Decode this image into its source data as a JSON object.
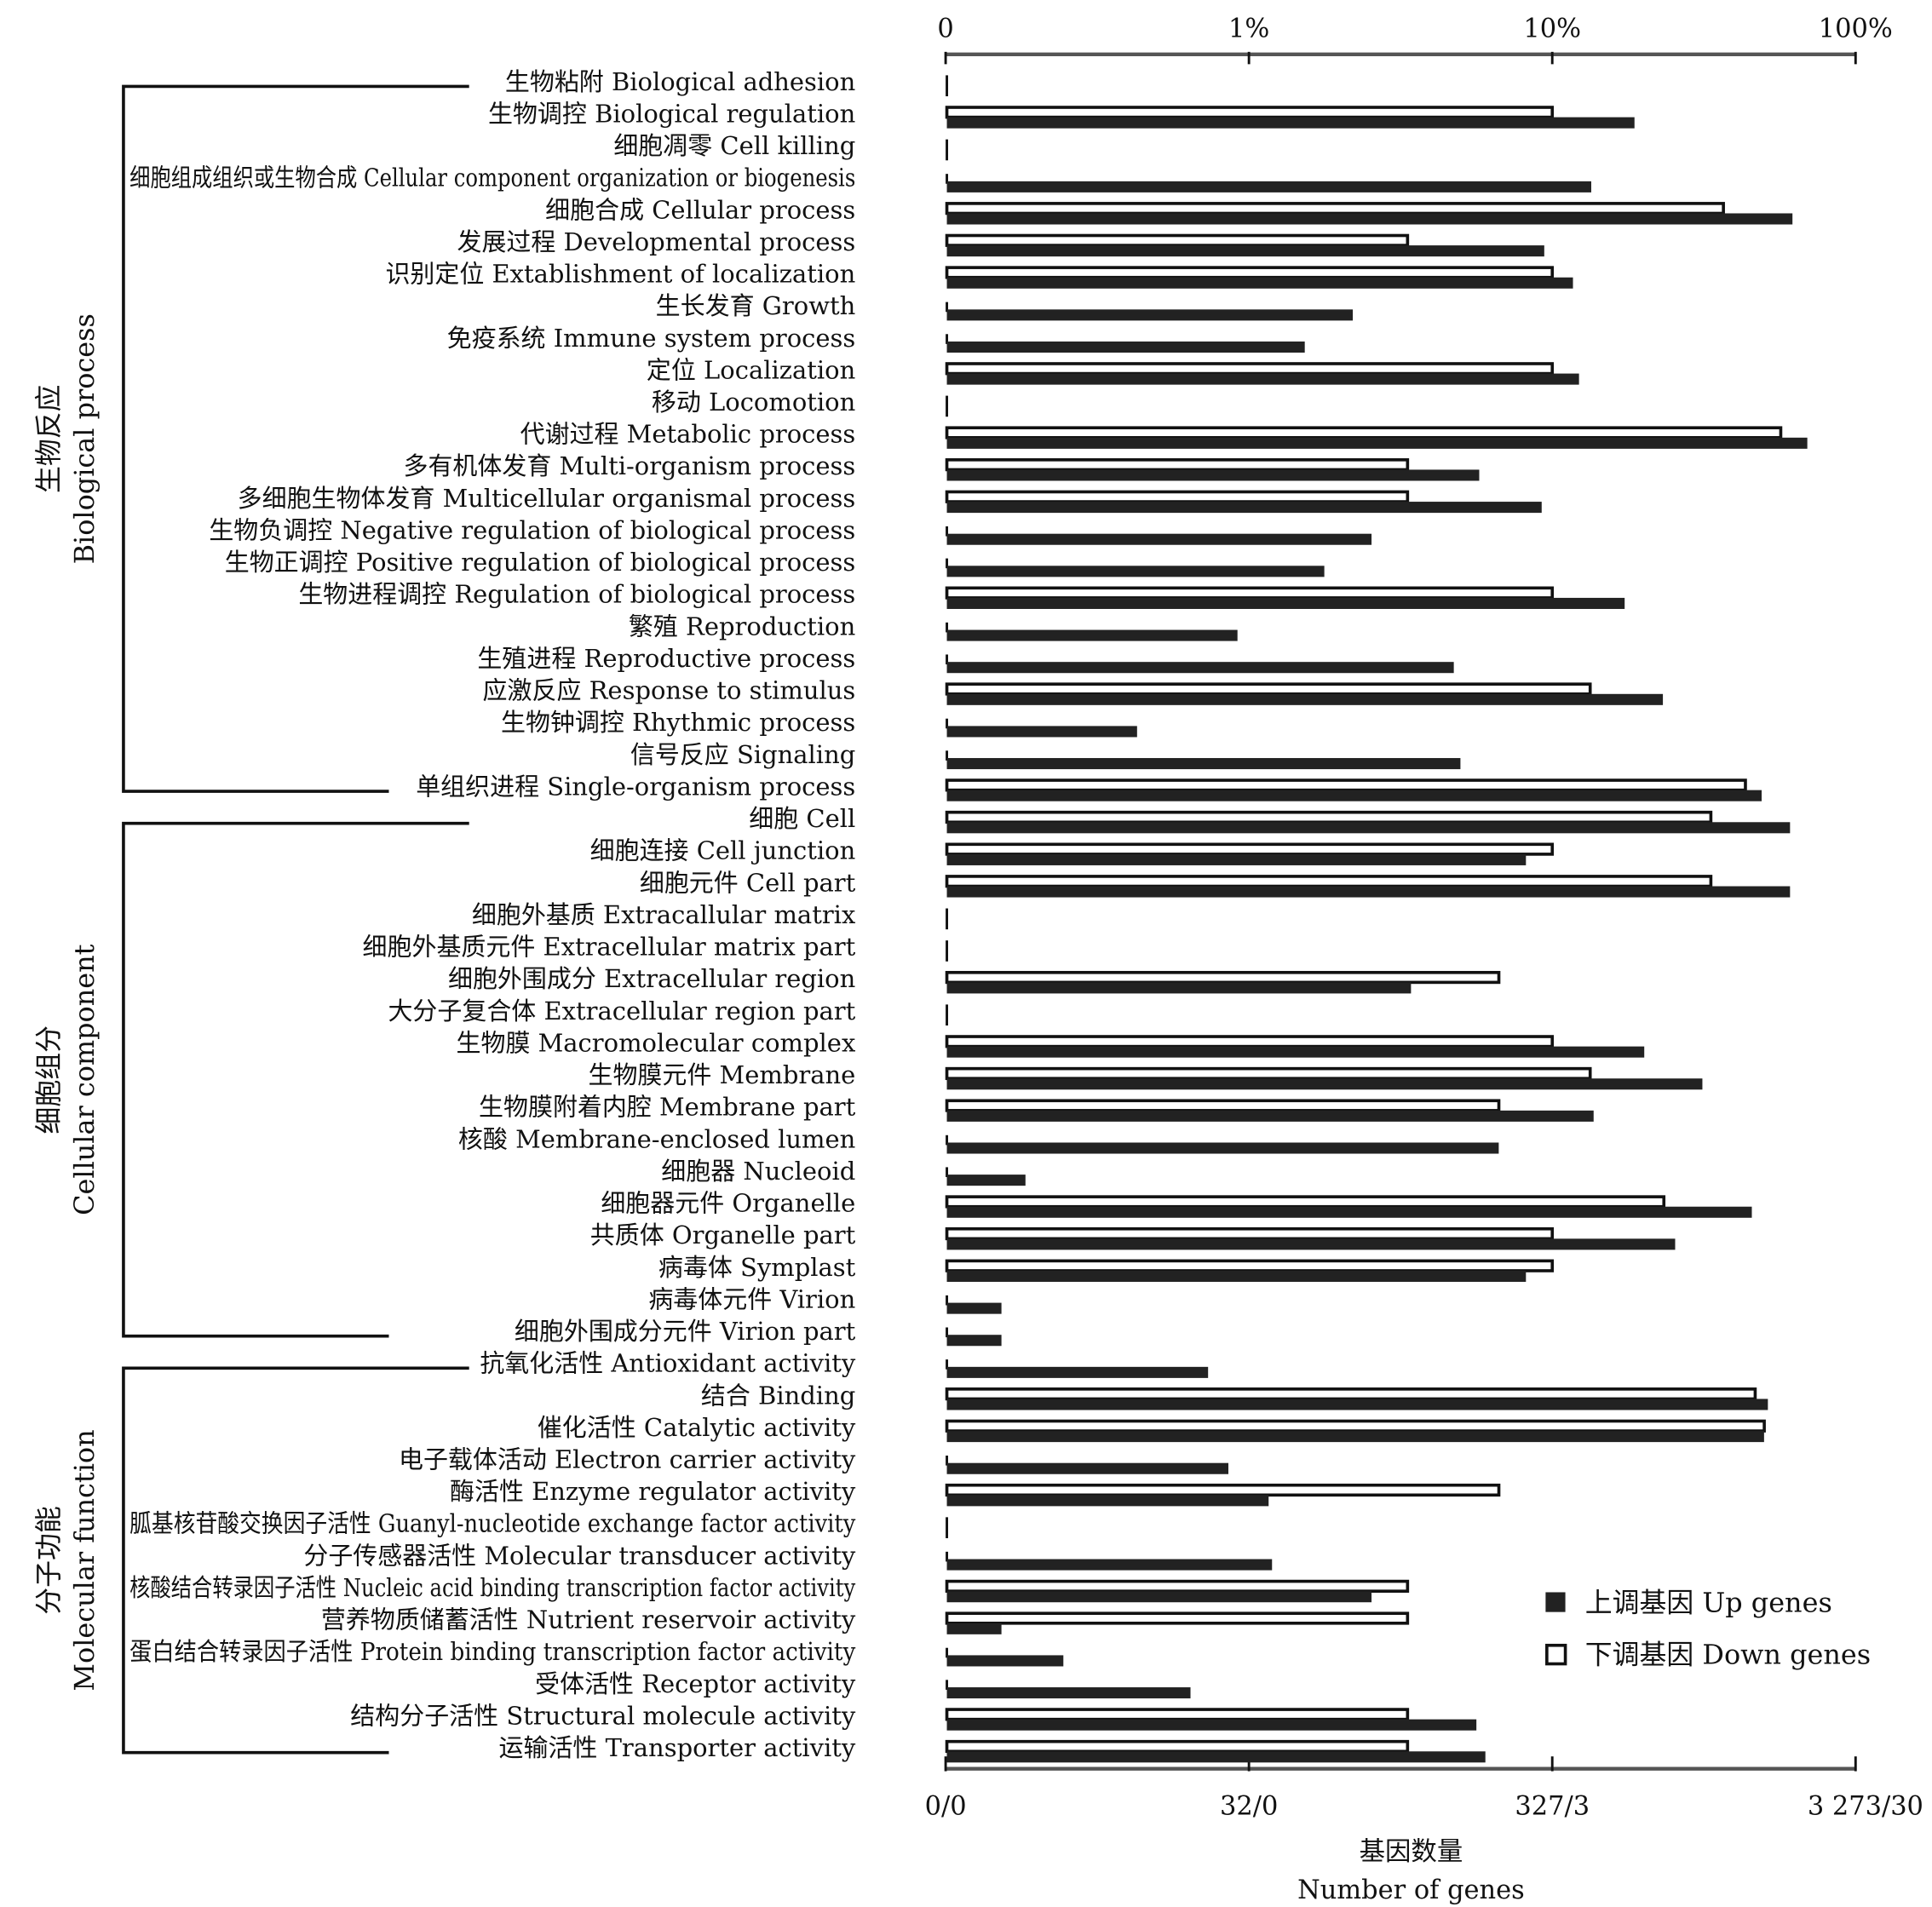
{
  "chart_data": {
    "type": "bar",
    "orientation": "horizontal",
    "scale": "log-percent",
    "top_axis_ticks": [
      "0",
      "1%",
      "10%",
      "100%"
    ],
    "bottom_axis_ticks": [
      "0/0",
      "32/0",
      "327/3",
      "3 273/30"
    ],
    "totals": {
      "up": 3273,
      "down": 30
    },
    "xlabel_cn": "基因数量",
    "xlabel_en": "Number of genes",
    "legend": [
      {
        "cn": "上调基因",
        "en": "Up genes",
        "color": "#222222"
      },
      {
        "cn": "下调基因",
        "en": "Down genes",
        "color": "#ffffff"
      }
    ],
    "legend_position": "bottom-right",
    "groups": [
      {
        "cn": "生物反应",
        "en": "Biological process",
        "start": 0,
        "end": 22
      },
      {
        "cn": "细胞组分",
        "en": "Cellular component",
        "start": 23,
        "end": 39
      },
      {
        "cn": "分子功能",
        "en": "Molecular function",
        "start": 40,
        "end": 52
      }
    ],
    "categories": [
      {
        "cn": "生物粘附",
        "en": "Biological adhesion"
      },
      {
        "cn": "生物调控",
        "en": "Biological regulation"
      },
      {
        "cn": "细胞凋零",
        "en": "Cell killing"
      },
      {
        "cn": "细胞组成组织或生物合成",
        "en": "Cellular component organization or biogenesis"
      },
      {
        "cn": "细胞合成",
        "en": "Cellular process"
      },
      {
        "cn": "发展过程",
        "en": "Developmental process"
      },
      {
        "cn": "识别定位",
        "en": "Extablishment of localization"
      },
      {
        "cn": "生长发育",
        "en": "Growth"
      },
      {
        "cn": "免疫系统",
        "en": "Immune system process"
      },
      {
        "cn": "定位",
        "en": "Localization"
      },
      {
        "cn": "移动",
        "en": "Locomotion"
      },
      {
        "cn": "代谢过程",
        "en": "Metabolic process"
      },
      {
        "cn": "多有机体发育",
        "en": "Multi-organism process"
      },
      {
        "cn": "多细胞生物体发育",
        "en": "Multicellular organismal process"
      },
      {
        "cn": "生物负调控",
        "en": "Negative regulation of biological process"
      },
      {
        "cn": "生物正调控",
        "en": "Positive regulation of biological process"
      },
      {
        "cn": "生物进程调控",
        "en": "Regulation of biological process"
      },
      {
        "cn": "繁殖",
        "en": "Reproduction"
      },
      {
        "cn": "生殖进程",
        "en": "Reproductive process"
      },
      {
        "cn": "应激反应",
        "en": "Response to stimulus"
      },
      {
        "cn": "生物钟调控",
        "en": "Rhythmic process"
      },
      {
        "cn": "信号反应",
        "en": "Signaling"
      },
      {
        "cn": "单组织进程",
        "en": "Single-organism process"
      },
      {
        "cn": "细胞",
        "en": "Cell"
      },
      {
        "cn": "细胞连接",
        "en": "Cell junction"
      },
      {
        "cn": "细胞元件",
        "en": "Cell part"
      },
      {
        "cn": "细胞外基质",
        "en": "Extracallular matrix"
      },
      {
        "cn": "细胞外基质元件",
        "en": "Extracellular matrix part"
      },
      {
        "cn": "细胞外围成分",
        "en": "Extracellular region"
      },
      {
        "cn": "大分子复合体",
        "en": "Extracellular region part"
      },
      {
        "cn": "生物膜",
        "en": "Macromolecular complex"
      },
      {
        "cn": "生物膜元件",
        "en": "Membrane"
      },
      {
        "cn": "生物膜附着内腔",
        "en": "Membrane part"
      },
      {
        "cn": "核酸",
        "en": "Membrane-enclosed lumen"
      },
      {
        "cn": "细胞器",
        "en": "Nucleoid"
      },
      {
        "cn": "细胞器元件",
        "en": "Organelle"
      },
      {
        "cn": "共质体",
        "en": "Organelle part"
      },
      {
        "cn": "病毒体",
        "en": "Symplast"
      },
      {
        "cn": "病毒体元件",
        "en": "Virion"
      },
      {
        "cn": "细胞外围成分元件",
        "en": "Virion part"
      },
      {
        "cn": "抗氧化活性",
        "en": "Antioxidant activity"
      },
      {
        "cn": "结合",
        "en": "Binding"
      },
      {
        "cn": "催化活性",
        "en": "Catalytic activity"
      },
      {
        "cn": "电子载体活动",
        "en": "Electron carrier activity"
      },
      {
        "cn": "酶活性",
        "en": "Enzyme regulator activity"
      },
      {
        "cn": "胍基核苷酸交换因子活性",
        "en": "Guanyl-nucleotide exchange factor activity"
      },
      {
        "cn": "分子传感器活性",
        "en": "Molecular transducer activity"
      },
      {
        "cn": "核酸结合转录因子活性",
        "en": "Nucleic acid binding transcription factor activity"
      },
      {
        "cn": "营养物质储蓄活性",
        "en": "Nutrient reservoir activity"
      },
      {
        "cn": "蛋白结合转录因子活性",
        "en": "Protein binding transcription factor activity"
      },
      {
        "cn": "受体活性",
        "en": "Receptor activity"
      },
      {
        "cn": "结构分子活性",
        "en": "Structural molecule activity"
      },
      {
        "cn": "运输活性",
        "en": "Transporter activity"
      }
    ],
    "series": [
      {
        "name": "Up genes",
        "values": [
          0,
          611,
          0,
          440,
          2027,
          308,
          383,
          72,
          50,
          401,
          0,
          2269,
          188,
          302,
          83,
          58,
          567,
          30,
          155,
          758,
          14,
          163,
          1604,
          1990,
          268,
          1990,
          0,
          0,
          112,
          0,
          658,
          1023,
          448,
          218,
          6,
          1489,
          832,
          268,
          5,
          5,
          24,
          1682,
          1634,
          28,
          38,
          0,
          39,
          83,
          5,
          8,
          21,
          184,
          197
        ]
      },
      {
        "name": "Down genes",
        "values": [
          0,
          3,
          0,
          0,
          11,
          1,
          3,
          0,
          0,
          3,
          0,
          17,
          1,
          1,
          0,
          0,
          3,
          0,
          0,
          4,
          0,
          0,
          13,
          10,
          3,
          10,
          0,
          0,
          2,
          0,
          3,
          4,
          2,
          0,
          0,
          7,
          3,
          3,
          0,
          0,
          0,
          14,
          15,
          0,
          2,
          0,
          0,
          1,
          1,
          0,
          0,
          1,
          1
        ]
      }
    ]
  }
}
